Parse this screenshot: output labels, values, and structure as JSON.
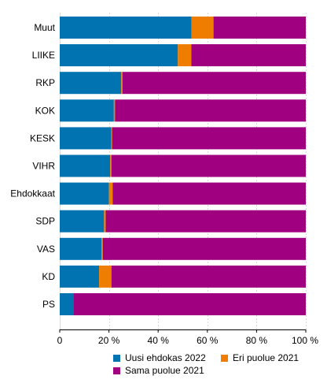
{
  "chart_data": {
    "type": "bar",
    "orientation": "horizontal",
    "stacked": true,
    "categories": [
      "Muut",
      "LIIKE",
      "RKP",
      "KOK",
      "KESK",
      "VIHR",
      "Ehdokkaat",
      "SDP",
      "VAS",
      "KD",
      "PS"
    ],
    "series": [
      {
        "name": "Uusi ehdokas 2022",
        "color": "#0073b0",
        "values": [
          53.5,
          48,
          25,
          22,
          21,
          20.5,
          20,
          18,
          17,
          16,
          5.5
        ]
      },
      {
        "name": "Eri puolue 2021",
        "color": "#ef7d00",
        "values": [
          9,
          5.5,
          0.5,
          0.5,
          0.3,
          0.5,
          1.5,
          0.7,
          0.5,
          5,
          0
        ]
      },
      {
        "name": "Sama puolue 2021",
        "color": "#a0007f",
        "values": [
          37.5,
          46.5,
          74.5,
          77.5,
          78.7,
          79,
          78.5,
          81.3,
          82.5,
          79,
          94.5
        ]
      }
    ],
    "xlim": [
      0,
      100
    ],
    "xticks": [
      "0",
      "20 %",
      "40 %",
      "60 %",
      "80 %",
      "100 %"
    ],
    "grid": true,
    "legend": "bottom"
  }
}
